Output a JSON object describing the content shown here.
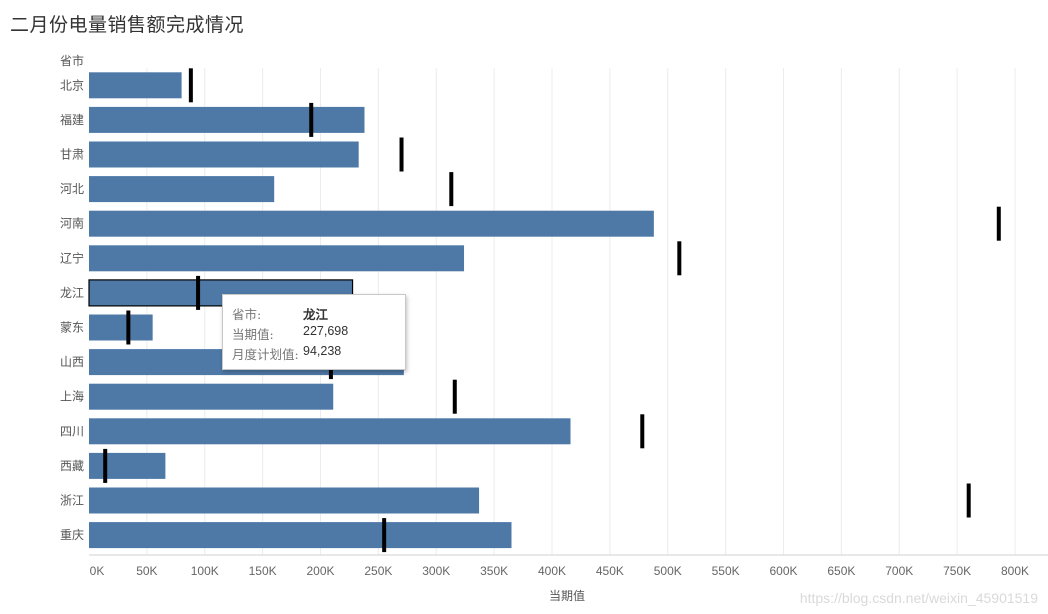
{
  "title": "二月份电量销售额完成情况",
  "row_header": "省市",
  "watermark": "https://blog.csdn.net/weixin_45901519",
  "tooltip": {
    "rows": [
      {
        "label": "省市:",
        "value": "龙江"
      },
      {
        "label": "当期值:",
        "value": "227,698"
      },
      {
        "label": "月度计划值:",
        "value": "94,238"
      }
    ]
  },
  "chart_data": {
    "type": "bar",
    "orientation": "horizontal",
    "title": "二月份电量销售额完成情况",
    "xlabel": "当期值",
    "ylabel": "省市",
    "xlim": [
      0,
      800000
    ],
    "xticks": [
      0,
      50000,
      100000,
      150000,
      200000,
      250000,
      300000,
      350000,
      400000,
      450000,
      500000,
      550000,
      600000,
      650000,
      700000,
      750000,
      800000
    ],
    "xtick_labels": [
      "0K",
      "50K",
      "100K",
      "150K",
      "200K",
      "250K",
      "300K",
      "350K",
      "400K",
      "450K",
      "500K",
      "550K",
      "600K",
      "650K",
      "700K",
      "750K",
      "800K"
    ],
    "grid": "vertical",
    "bar_color": "#4e79a7",
    "marker_color": "#000000",
    "categories": [
      "北京",
      "福建",
      "甘肃",
      "河北",
      "河南",
      "辽宁",
      "龙江",
      "蒙东",
      "山西",
      "上海",
      "四川",
      "西藏",
      "浙江",
      "重庆"
    ],
    "series": [
      {
        "values": [
          80000,
          238000,
          233000,
          160000,
          488000,
          324000,
          227698,
          55000,
          272000,
          211000,
          416000,
          66000,
          337000,
          365000
        ]
      },
      {
        "values": [
          88000,
          192000,
          270000,
          313000,
          786000,
          510000,
          94238,
          34000,
          209000,
          316000,
          478000,
          14000,
          760000,
          255000
        ]
      }
    ],
    "highlighted_category": "龙江"
  }
}
